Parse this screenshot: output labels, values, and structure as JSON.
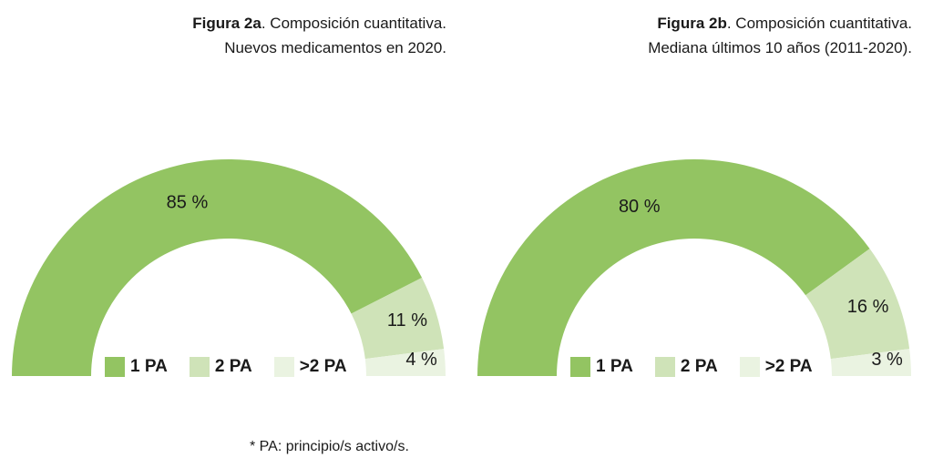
{
  "chart_data": [
    {
      "type": "pie",
      "variant": "semi-donut",
      "title_bold": "Figura 2a",
      "title_rest": ". Composición cuantitativa.",
      "subtitle": "Nuevos medicamentos en 2020.",
      "categories": [
        "1 PA",
        "2 PA",
        ">2 PA"
      ],
      "values": [
        85,
        11,
        4
      ],
      "labels": [
        "85 %",
        "11 %",
        "4 %"
      ]
    },
    {
      "type": "pie",
      "variant": "semi-donut",
      "title_bold": "Figura 2b",
      "title_rest": ". Composición cuantitativa.",
      "subtitle": "Mediana últimos 10 años (2011-2020).",
      "categories": [
        "1 PA",
        "2 PA",
        ">2 PA"
      ],
      "values": [
        80,
        16,
        3
      ],
      "labels": [
        "80 %",
        "16 %",
        "3 %"
      ]
    }
  ],
  "colors": [
    "#93c462",
    "#cfe3b8",
    "#eaf3e1"
  ],
  "footnote": "* PA: principio/s activo/s."
}
